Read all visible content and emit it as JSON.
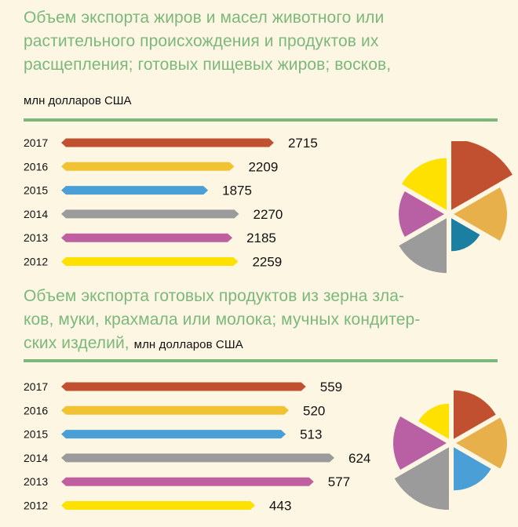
{
  "chart_data": [
    {
      "type": "bar",
      "title": "Объем экспорта жиров и масел животного или растительного происхождения и продуктов их расщепления; готовых пищевых жиров; восков,",
      "title_lines": [
        "Объем экспорта жиров и масел животного или",
        "растительного происхождения и продуктов их",
        "расщепления; готовых пищевых жиров; восков,"
      ],
      "unit": "млн  долларов США",
      "categories": [
        "2017",
        "2016",
        "2015",
        "2014",
        "2013",
        "2012"
      ],
      "values": [
        2715,
        2209,
        1875,
        2270,
        2185,
        2259
      ],
      "colors": [
        "#c0502f",
        "#f1c232",
        "#4a9fd6",
        "#9b9b9b",
        "#c05fa0",
        "#ffe100"
      ],
      "pie_colors": [
        "#c0502f",
        "#e8b04a",
        "#1a7fa0",
        "#9b9b9b",
        "#b95fa3",
        "#ffe100"
      ],
      "orientation": "horizontal",
      "grid": false
    },
    {
      "type": "bar",
      "title": "Объем экспорта готовых продуктов из зерна злаков, муки, крахмала или молока; мучных кондитерских изделий,",
      "title_lines": [
        "Объем экспорта готовых продуктов из зерна зла-",
        "ков, муки, крахмала или молока; мучных кондитер-",
        "ских изделий,"
      ],
      "unit": "млн долларов США",
      "categories": [
        "2017",
        "2016",
        "2015",
        "2014",
        "2013",
        "2012"
      ],
      "values": [
        559,
        520,
        513,
        624,
        577,
        443
      ],
      "colors": [
        "#c0502f",
        "#f1c232",
        "#4a9fd6",
        "#9b9b9b",
        "#c05fa0",
        "#ffe100"
      ],
      "pie_colors": [
        "#c0502f",
        "#e8b04a",
        "#4a9fd6",
        "#9b9b9b",
        "#b95fa3",
        "#ffe100"
      ],
      "orientation": "horizontal",
      "grid": false
    }
  ]
}
